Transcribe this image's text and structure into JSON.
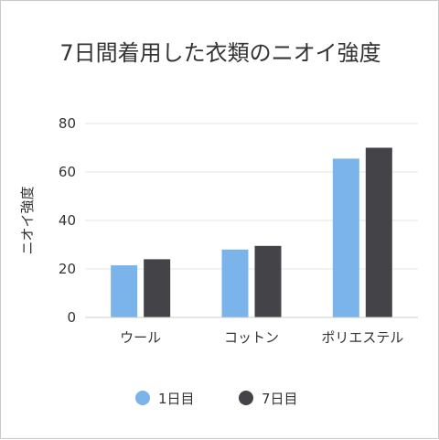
{
  "chart_data": {
    "type": "bar",
    "title": "7日間着用した衣類のニオイ強度",
    "xlabel": "",
    "ylabel": "ニオイ強度",
    "categories": [
      "ウール",
      "コットン",
      "ポリエステル"
    ],
    "series": [
      {
        "name": "1日目",
        "values": [
          21.5,
          28,
          65.5
        ],
        "color": "#7ab4ea"
      },
      {
        "name": "7日目",
        "values": [
          24,
          29.5,
          70
        ],
        "color": "#434348"
      }
    ],
    "ylim": [
      0,
      80
    ],
    "yticks": [
      0,
      20,
      40,
      60,
      80
    ],
    "grid": true,
    "legend_position": "bottom-center"
  }
}
